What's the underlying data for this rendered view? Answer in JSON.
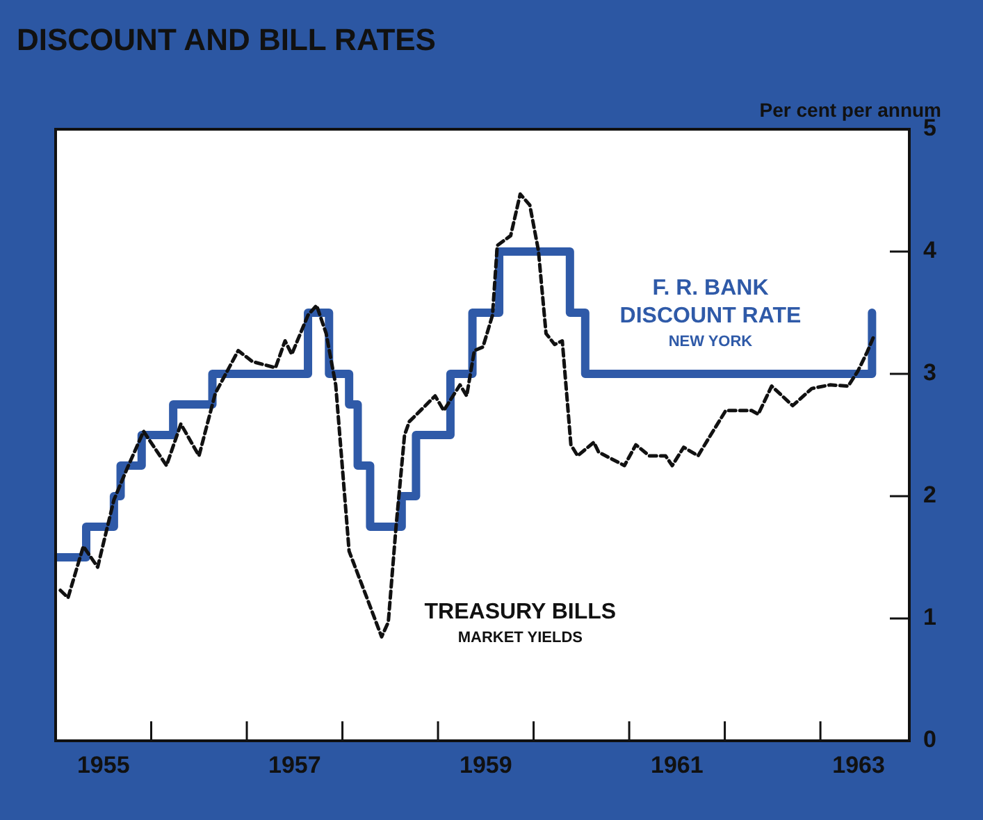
{
  "chart_data": {
    "type": "line",
    "title": "DISCOUNT AND BILL RATES",
    "ylabel": "Per cent per annum",
    "xlim": [
      1955.0,
      1963.93
    ],
    "xticks": [
      {
        "value": 1955.5,
        "label": "1955"
      },
      {
        "value": 1956,
        "label": null
      },
      {
        "value": 1957,
        "label": null
      },
      {
        "value": 1957.5,
        "label": "1957"
      },
      {
        "value": 1958,
        "label": null
      },
      {
        "value": 1959,
        "label": null
      },
      {
        "value": 1959.5,
        "label": "1959"
      },
      {
        "value": 1960,
        "label": null
      },
      {
        "value": 1961,
        "label": null
      },
      {
        "value": 1961.5,
        "label": "1961"
      },
      {
        "value": 1962,
        "label": null
      },
      {
        "value": 1963,
        "label": null
      },
      {
        "value": 1963.4,
        "label": "1963"
      }
    ],
    "ylim": [
      0,
      5
    ],
    "yticks": [
      0,
      1,
      2,
      3,
      4,
      5
    ],
    "annotations": [
      "NEW YORK",
      "MARKET YIELDS"
    ],
    "legend": false,
    "series": [
      {
        "name": "F. R. BANK DISCOUNT RATE",
        "type": "step",
        "color": "#2f5aa8",
        "x": [
          1955.0,
          1955.32,
          1955.61,
          1955.68,
          1955.9,
          1956.23,
          1956.64,
          1957.64,
          1957.86,
          1958.07,
          1958.16,
          1958.29,
          1958.62,
          1958.77,
          1959.13,
          1959.36,
          1959.64,
          1960.38,
          1960.54,
          1963.54
        ],
        "values": [
          1.5,
          1.75,
          2.0,
          2.25,
          2.5,
          2.75,
          3.0,
          3.5,
          3.0,
          2.75,
          2.25,
          1.75,
          2.0,
          2.5,
          3.0,
          3.5,
          4.0,
          3.5,
          3.0,
          3.5
        ]
      },
      {
        "name": "TREASURY BILLS",
        "type": "line",
        "line_style": "dashed",
        "color": "#111111",
        "x": [
          1955.05,
          1955.13,
          1955.29,
          1955.44,
          1955.61,
          1955.75,
          1955.92,
          1956.16,
          1956.31,
          1956.5,
          1956.67,
          1956.91,
          1957.06,
          1957.3,
          1957.4,
          1957.47,
          1957.64,
          1957.73,
          1957.83,
          1957.93,
          1958.07,
          1958.27,
          1958.41,
          1958.48,
          1958.56,
          1958.65,
          1958.7,
          1958.97,
          1959.06,
          1959.23,
          1959.3,
          1959.38,
          1959.47,
          1959.57,
          1959.62,
          1959.76,
          1959.86,
          1959.96,
          1960.05,
          1960.13,
          1960.22,
          1960.3,
          1960.39,
          1960.46,
          1960.63,
          1960.68,
          1960.95,
          1961.07,
          1961.21,
          1961.38,
          1961.45,
          1961.57,
          1961.72,
          1961.86,
          1962.01,
          1962.28,
          1962.35,
          1962.49,
          1962.71,
          1962.91,
          1963.1,
          1963.29,
          1963.39,
          1963.49,
          1963.56
        ],
        "values": [
          1.23,
          1.17,
          1.59,
          1.42,
          1.97,
          2.23,
          2.53,
          2.25,
          2.59,
          2.33,
          2.84,
          3.19,
          3.1,
          3.05,
          3.27,
          3.16,
          3.48,
          3.56,
          3.33,
          2.91,
          1.55,
          1.14,
          0.85,
          0.97,
          1.74,
          2.5,
          2.61,
          2.82,
          2.7,
          2.91,
          2.82,
          3.19,
          3.22,
          3.48,
          4.05,
          4.13,
          4.47,
          4.38,
          4.01,
          3.33,
          3.24,
          3.27,
          2.42,
          2.33,
          2.44,
          2.36,
          2.25,
          2.42,
          2.33,
          2.33,
          2.25,
          2.4,
          2.33,
          2.51,
          2.7,
          2.7,
          2.67,
          2.9,
          2.74,
          2.88,
          2.91,
          2.9,
          3.02,
          3.18,
          3.31
        ]
      }
    ]
  }
}
